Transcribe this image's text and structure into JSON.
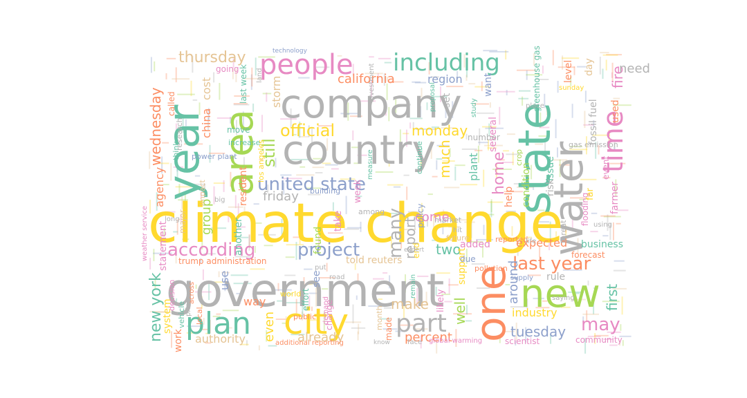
{
  "palette": {
    "gray": "#b3b3b3",
    "yellow": "#ffd92f",
    "green": "#a6d854",
    "orange": "#fc8d62",
    "teal": "#66c2a5",
    "pink": "#e78ac3",
    "blue": "#8da0cb",
    "tan": "#e5c494"
  },
  "words": [
    {
      "text": "climate change",
      "color": "yellow"
    },
    {
      "text": "government",
      "color": "gray"
    },
    {
      "text": "country",
      "color": "gray"
    },
    {
      "text": "company",
      "color": "gray"
    },
    {
      "text": "year",
      "color": "teal"
    },
    {
      "text": "state",
      "color": "teal"
    },
    {
      "text": "water",
      "color": "gray"
    },
    {
      "text": "one",
      "color": "orange"
    },
    {
      "text": "new",
      "color": "green"
    },
    {
      "text": "area",
      "color": "green"
    },
    {
      "text": "city",
      "color": "yellow"
    },
    {
      "text": "people",
      "color": "pink"
    },
    {
      "text": "plan",
      "color": "teal"
    },
    {
      "text": "time",
      "color": "pink"
    },
    {
      "text": "including",
      "color": "teal"
    },
    {
      "text": "part",
      "color": "gray"
    },
    {
      "text": "according",
      "color": "pink"
    },
    {
      "text": "united state",
      "color": "blue"
    },
    {
      "text": "project",
      "color": "blue"
    },
    {
      "text": "last year",
      "color": "orange"
    },
    {
      "text": "may",
      "color": "pink"
    },
    {
      "text": "official",
      "color": "yellow"
    },
    {
      "text": "new york",
      "color": "teal"
    },
    {
      "text": "many",
      "color": "gray"
    },
    {
      "text": "still",
      "color": "green"
    },
    {
      "text": "wednesday",
      "color": "orange"
    },
    {
      "text": "home",
      "color": "pink"
    },
    {
      "text": "thursday",
      "color": "tan"
    },
    {
      "text": "tuesday",
      "color": "blue"
    },
    {
      "text": "make",
      "color": "tan"
    },
    {
      "text": "monday",
      "color": "yellow"
    },
    {
      "text": "california",
      "color": "orange"
    },
    {
      "text": "report",
      "color": "gray"
    },
    {
      "text": "friday",
      "color": "gray"
    },
    {
      "text": "already",
      "color": "tan"
    },
    {
      "text": "around",
      "color": "blue"
    },
    {
      "text": "percent",
      "color": "orange"
    },
    {
      "text": "industry",
      "color": "yellow"
    },
    {
      "text": "expected",
      "color": "orange"
    },
    {
      "text": "authority",
      "color": "tan"
    },
    {
      "text": "well",
      "color": "green"
    },
    {
      "text": "much",
      "color": "yellow"
    },
    {
      "text": "two",
      "color": "teal"
    },
    {
      "text": "come",
      "color": "pink"
    },
    {
      "text": "first",
      "color": "teal"
    },
    {
      "text": "fire",
      "color": "pink"
    },
    {
      "text": "need",
      "color": "gray"
    },
    {
      "text": "storm",
      "color": "tan"
    },
    {
      "text": "region",
      "color": "blue"
    },
    {
      "text": "agency",
      "color": "orange"
    },
    {
      "text": "group",
      "color": "green"
    },
    {
      "text": "china",
      "color": "orange"
    },
    {
      "text": "cost",
      "color": "tan"
    },
    {
      "text": "even",
      "color": "yellow"
    },
    {
      "text": "plant",
      "color": "teal"
    },
    {
      "text": "business",
      "color": "teal"
    },
    {
      "text": "forecast",
      "color": "orange"
    },
    {
      "text": "community",
      "color": "pink"
    },
    {
      "text": "scientist",
      "color": "pink"
    },
    {
      "text": "way",
      "color": "orange"
    },
    {
      "text": "use",
      "color": "blue"
    },
    {
      "text": "told reuters",
      "color": "tan"
    },
    {
      "text": "trump administration",
      "color": "orange"
    },
    {
      "text": "resident",
      "color": "orange"
    },
    {
      "text": "another",
      "color": "teal"
    },
    {
      "text": "fossil fuel",
      "color": "gray"
    },
    {
      "text": "day",
      "color": "tan"
    },
    {
      "text": "greenhouse gas",
      "color": "teal"
    },
    {
      "text": "used",
      "color": "orange"
    },
    {
      "text": "farmer",
      "color": "pink"
    },
    {
      "text": "issue",
      "color": "teal"
    },
    {
      "text": "risk",
      "color": "gray"
    },
    {
      "text": "level",
      "color": "orange"
    },
    {
      "text": "rule",
      "color": "gray"
    },
    {
      "text": "help",
      "color": "orange"
    },
    {
      "text": "added",
      "color": "pink"
    },
    {
      "text": "support",
      "color": "yellow"
    },
    {
      "text": "due",
      "color": "blue"
    },
    {
      "text": "see",
      "color": "blue"
    },
    {
      "text": "found",
      "color": "green"
    },
    {
      "text": "take",
      "color": "pink"
    },
    {
      "text": "set",
      "color": "gray"
    },
    {
      "text": "want",
      "color": "blue"
    },
    {
      "text": "several",
      "color": "pink"
    },
    {
      "text": "system",
      "color": "yellow"
    },
    {
      "text": "work",
      "color": "orange"
    },
    {
      "text": "statement",
      "color": "pink"
    },
    {
      "text": "last week",
      "color": "teal"
    },
    {
      "text": "going",
      "color": "pink"
    },
    {
      "text": "move",
      "color": "teal"
    },
    {
      "text": "power plant",
      "color": "blue"
    },
    {
      "text": "increase",
      "color": "teal"
    },
    {
      "text": "gas emission",
      "color": "gray"
    },
    {
      "text": "number",
      "color": "gray"
    },
    {
      "text": "policy",
      "color": "blue"
    },
    {
      "text": "condition",
      "color": "green"
    },
    {
      "text": "event",
      "color": "pink"
    },
    {
      "text": "flooding",
      "color": "pink"
    },
    {
      "text": "global warming",
      "color": "pink"
    },
    {
      "text": "additional reporting",
      "color": "orange"
    },
    {
      "text": "world",
      "color": "yellow"
    },
    {
      "text": "week",
      "color": "pink"
    },
    {
      "text": "among",
      "color": "gray"
    },
    {
      "text": "building",
      "color": "blue"
    },
    {
      "text": "continue",
      "color": "teal"
    },
    {
      "text": "pollution",
      "color": "orange"
    },
    {
      "text": "market",
      "color": "gray"
    },
    {
      "text": "called",
      "color": "orange"
    },
    {
      "text": "think",
      "color": "teal"
    },
    {
      "text": "research",
      "color": "gray"
    },
    {
      "text": "weather service",
      "color": "pink"
    },
    {
      "text": "decision",
      "color": "pink"
    },
    {
      "text": "vehicle",
      "color": "teal"
    },
    {
      "text": "impact",
      "color": "tan"
    },
    {
      "text": "major",
      "color": "tan"
    },
    {
      "text": "local",
      "color": "orange"
    },
    {
      "text": "effort",
      "color": "teal"
    },
    {
      "text": "made",
      "color": "orange"
    },
    {
      "text": "month",
      "color": "tan"
    },
    {
      "text": "change",
      "color": "pink"
    },
    {
      "text": "public",
      "color": "orange"
    },
    {
      "text": "likely",
      "color": "pink"
    },
    {
      "text": "sunday",
      "color": "yellow"
    },
    {
      "text": "threat",
      "color": "gray"
    },
    {
      "text": "place",
      "color": "gray"
    },
    {
      "text": "crop",
      "color": "green"
    },
    {
      "text": "technology",
      "color": "blue"
    },
    {
      "text": "land",
      "color": "gray"
    },
    {
      "text": "investment",
      "color": "gray"
    },
    {
      "text": "measure",
      "color": "teal"
    },
    {
      "text": "proposal",
      "color": "teal"
    },
    {
      "text": "reported",
      "color": "orange"
    },
    {
      "text": "study",
      "color": "teal"
    },
    {
      "text": "los angeles",
      "color": "yellow"
    },
    {
      "text": "far",
      "color": "yellow"
    },
    {
      "text": "using",
      "color": "gray"
    },
    {
      "text": "saying",
      "color": "gray"
    },
    {
      "text": "supply",
      "color": "blue"
    },
    {
      "text": "face",
      "color": "gray"
    },
    {
      "text": "future",
      "color": "tan"
    },
    {
      "text": "remain",
      "color": "teal"
    },
    {
      "text": "road",
      "color": "gray"
    },
    {
      "text": "life",
      "color": "gray"
    },
    {
      "text": "hit",
      "color": "gray"
    },
    {
      "text": "big",
      "color": "gray"
    },
    {
      "text": "long",
      "color": "gray"
    },
    {
      "text": "demand",
      "color": "pink"
    },
    {
      "text": "put",
      "color": "gray"
    },
    {
      "text": "know",
      "color": "gray"
    },
    {
      "text": "across",
      "color": "orange"
    },
    {
      "text": "price",
      "color": "gray"
    },
    {
      "text": "end",
      "color": "yellow"
    },
    {
      "text": "expert",
      "color": "gray"
    }
  ]
}
